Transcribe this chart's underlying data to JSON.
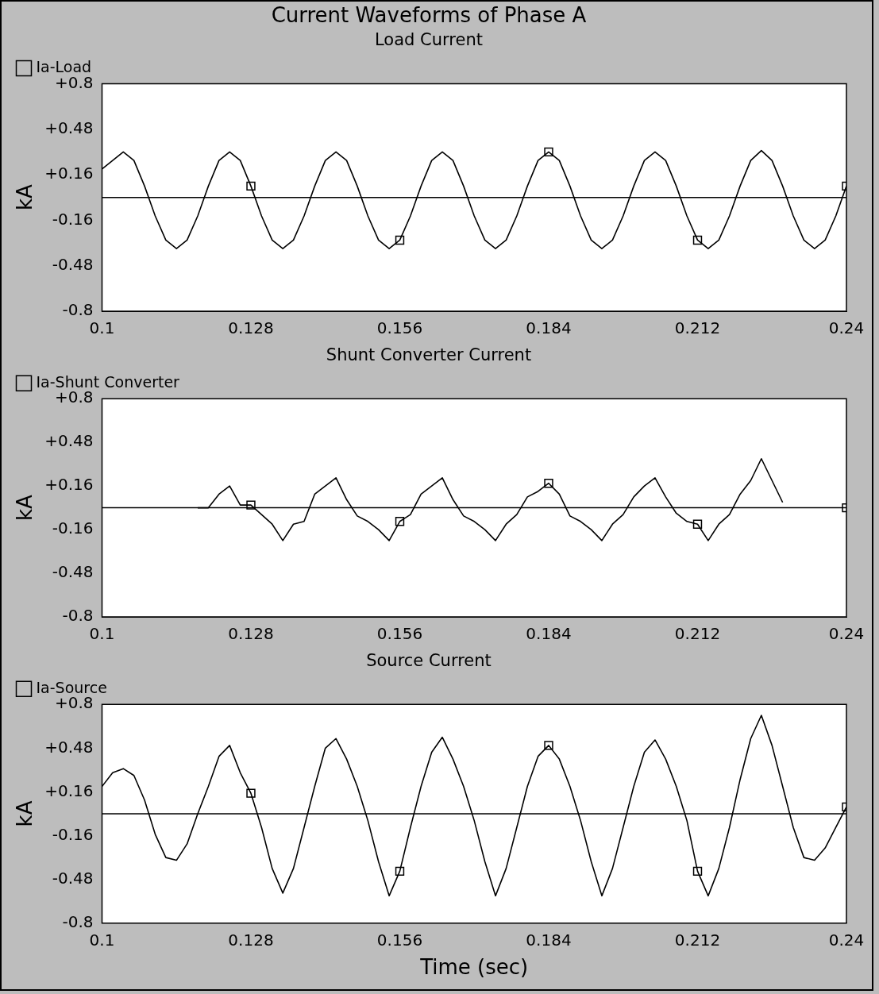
{
  "chart_data": [
    {
      "type": "line",
      "title": "Current Waveforms of Phase A",
      "subtitle": "Load Current",
      "ylabel": "kA",
      "x": [
        0.1,
        0.102,
        0.104,
        0.106,
        0.108,
        0.11,
        0.112,
        0.114,
        0.116,
        0.118,
        0.12,
        0.122,
        0.124,
        0.126,
        0.128,
        0.13,
        0.132,
        0.134,
        0.136,
        0.138,
        0.14,
        0.142,
        0.144,
        0.146,
        0.148,
        0.15,
        0.152,
        0.154,
        0.156,
        0.158,
        0.16,
        0.162,
        0.164,
        0.166,
        0.168,
        0.17,
        0.172,
        0.174,
        0.176,
        0.178,
        0.18,
        0.182,
        0.184,
        0.186,
        0.188,
        0.19,
        0.192,
        0.194,
        0.196,
        0.198,
        0.2,
        0.202,
        0.204,
        0.206,
        0.208,
        0.21,
        0.212,
        0.214,
        0.216,
        0.218,
        0.22,
        0.222,
        0.224,
        0.226,
        0.228,
        0.23,
        0.232,
        0.234,
        0.236,
        0.238,
        0.24
      ],
      "series": [
        {
          "name": "Ia-Load",
          "color": "#000000",
          "marker": "none",
          "values": [
            0.2,
            0.26,
            0.32,
            0.26,
            0.08,
            -0.13,
            -0.3,
            -0.36,
            -0.3,
            -0.13,
            0.08,
            0.26,
            0.32,
            0.26,
            0.08,
            -0.13,
            -0.3,
            -0.36,
            -0.3,
            -0.13,
            0.08,
            0.26,
            0.32,
            0.26,
            0.08,
            -0.13,
            -0.3,
            -0.36,
            -0.3,
            -0.13,
            0.08,
            0.26,
            0.32,
            0.26,
            0.08,
            -0.13,
            -0.3,
            -0.36,
            -0.3,
            -0.13,
            0.08,
            0.26,
            0.32,
            0.26,
            0.08,
            -0.13,
            -0.3,
            -0.36,
            -0.3,
            -0.13,
            0.08,
            0.26,
            0.32,
            0.26,
            0.08,
            -0.13,
            -0.3,
            -0.36,
            -0.3,
            -0.13,
            0.08,
            0.26,
            0.33,
            0.26,
            0.08,
            -0.13,
            -0.3,
            -0.36,
            -0.3,
            -0.13,
            0.08
          ]
        },
        {
          "type": "scatter",
          "color": "#000000",
          "x": [
            0.128,
            0.156,
            0.184,
            0.212,
            0.24
          ],
          "values": [
            0.08,
            -0.3,
            0.32,
            -0.3,
            0.08
          ]
        }
      ],
      "xlim": [
        0.1,
        0.24
      ],
      "xticks": [
        0.1,
        0.128,
        0.156,
        0.184,
        0.212,
        0.24
      ],
      "ylim": [
        -0.8,
        0.8
      ],
      "yticks": [
        {
          "value": 0.8,
          "label": "+0.8"
        },
        {
          "value": 0.48,
          "label": "+0.48"
        },
        {
          "value": 0.16,
          "label": "+0.16"
        },
        {
          "value": -0.16,
          "label": "-0.16"
        },
        {
          "value": -0.48,
          "label": "-0.48"
        },
        {
          "value": -0.8,
          "label": "-0.8"
        }
      ],
      "ref_lines": [
        {
          "axis": "y",
          "value": 0,
          "color": "#000000"
        }
      ],
      "legend": "top left",
      "marker": "square",
      "line_style": "solid"
    },
    {
      "type": "line",
      "title": "Shunt Converter Current",
      "ylabel": "kA",
      "series": [
        {
          "name": "Ia-Shunt Converter",
          "color": "#000000",
          "marker": "none",
          "x": [
            0.118,
            0.12,
            0.122,
            0.124,
            0.126,
            0.128,
            0.13,
            0.132,
            0.134,
            0.136,
            0.138,
            0.14,
            0.142,
            0.144,
            0.146,
            0.148,
            0.15,
            0.152,
            0.154,
            0.156,
            0.158,
            0.16,
            0.162,
            0.164,
            0.166,
            0.168,
            0.17,
            0.172,
            0.174,
            0.176,
            0.178,
            0.18,
            0.182,
            0.184,
            0.186,
            0.188,
            0.19,
            0.192,
            0.194,
            0.196,
            0.198,
            0.2,
            0.202,
            0.204,
            0.206,
            0.208,
            0.21,
            0.212,
            0.214,
            0.216,
            0.218,
            0.22,
            0.222,
            0.224,
            0.226,
            0.228
          ],
          "values": [
            0,
            0,
            0.1,
            0.16,
            0.02,
            0.02,
            -0.05,
            -0.12,
            -0.24,
            -0.12,
            -0.1,
            0.1,
            0.16,
            0.22,
            0.06,
            -0.06,
            -0.1,
            -0.16,
            -0.24,
            -0.1,
            -0.05,
            0.1,
            0.16,
            0.22,
            0.06,
            -0.06,
            -0.1,
            -0.16,
            -0.24,
            -0.12,
            -0.05,
            0.08,
            0.12,
            0.18,
            0.1,
            -0.06,
            -0.1,
            -0.16,
            -0.24,
            -0.12,
            -0.05,
            0.08,
            0.16,
            0.22,
            0.08,
            -0.04,
            -0.1,
            -0.12,
            -0.24,
            -0.12,
            -0.05,
            0.1,
            0.2,
            0.36,
            0.2,
            0.04
          ]
        },
        {
          "type": "scatter",
          "color": "#000000",
          "x": [
            0.128,
            0.156,
            0.184,
            0.212,
            0.24
          ],
          "values": [
            0.02,
            -0.1,
            0.18,
            -0.12,
            0
          ]
        }
      ],
      "xlim": [
        0.1,
        0.24
      ],
      "xticks": [
        0.1,
        0.128,
        0.156,
        0.184,
        0.212,
        0.24
      ],
      "ylim": [
        -0.8,
        0.8
      ],
      "yticks": [
        {
          "value": 0.8,
          "label": "+0.8"
        },
        {
          "value": 0.48,
          "label": "+0.48"
        },
        {
          "value": 0.16,
          "label": "+0.16"
        },
        {
          "value": -0.16,
          "label": "-0.16"
        },
        {
          "value": -0.48,
          "label": "-0.48"
        },
        {
          "value": -0.8,
          "label": "-0.8"
        }
      ],
      "ref_lines": [
        {
          "axis": "y",
          "value": 0,
          "color": "#000000"
        }
      ],
      "legend": "top left",
      "marker": "square",
      "line_style": "solid"
    },
    {
      "type": "line",
      "title": "Source Current",
      "ylabel": "kA",
      "xlabel": "Time (sec)",
      "x": [
        0.1,
        0.102,
        0.104,
        0.106,
        0.108,
        0.11,
        0.112,
        0.114,
        0.116,
        0.118,
        0.12,
        0.122,
        0.124,
        0.126,
        0.128,
        0.13,
        0.132,
        0.134,
        0.136,
        0.138,
        0.14,
        0.142,
        0.144,
        0.146,
        0.148,
        0.15,
        0.152,
        0.154,
        0.156,
        0.158,
        0.16,
        0.162,
        0.164,
        0.166,
        0.168,
        0.17,
        0.172,
        0.174,
        0.176,
        0.178,
        0.18,
        0.182,
        0.184,
        0.186,
        0.188,
        0.19,
        0.192,
        0.194,
        0.196,
        0.198,
        0.2,
        0.202,
        0.204,
        0.206,
        0.208,
        0.21,
        0.212,
        0.214,
        0.216,
        0.218,
        0.22,
        0.222,
        0.224,
        0.226,
        0.228,
        0.23,
        0.232,
        0.234,
        0.236,
        0.238,
        0.24
      ],
      "series": [
        {
          "name": "Ia-Source",
          "color": "#000000",
          "marker": "none",
          "values": [
            0.2,
            0.3,
            0.33,
            0.28,
            0.1,
            -0.15,
            -0.32,
            -0.34,
            -0.22,
            0,
            0.2,
            0.42,
            0.5,
            0.3,
            0.15,
            -0.1,
            -0.4,
            -0.58,
            -0.4,
            -0.1,
            0.2,
            0.48,
            0.55,
            0.4,
            0.2,
            -0.05,
            -0.35,
            -0.6,
            -0.42,
            -0.1,
            0.2,
            0.45,
            0.56,
            0.4,
            0.2,
            -0.05,
            -0.35,
            -0.6,
            -0.4,
            -0.1,
            0.2,
            0.42,
            0.5,
            0.4,
            0.2,
            -0.05,
            -0.35,
            -0.6,
            -0.4,
            -0.1,
            0.2,
            0.45,
            0.54,
            0.4,
            0.2,
            -0.05,
            -0.42,
            -0.6,
            -0.4,
            -0.1,
            0.25,
            0.55,
            0.72,
            0.5,
            0.2,
            -0.1,
            -0.32,
            -0.34,
            -0.25,
            -0.1,
            0.05
          ]
        },
        {
          "type": "scatter",
          "color": "#000000",
          "x": [
            0.128,
            0.156,
            0.184,
            0.212,
            0.24
          ],
          "values": [
            0.15,
            -0.42,
            0.5,
            -0.42,
            0.05
          ]
        }
      ],
      "xlim": [
        0.1,
        0.24
      ],
      "xticks": [
        0.1,
        0.128,
        0.156,
        0.184,
        0.212,
        0.24
      ],
      "ylim": [
        -0.8,
        0.8
      ],
      "yticks": [
        {
          "value": 0.8,
          "label": "+0.8"
        },
        {
          "value": 0.48,
          "label": "+0.48"
        },
        {
          "value": 0.16,
          "label": "+0.16"
        },
        {
          "value": -0.16,
          "label": "-0.16"
        },
        {
          "value": -0.48,
          "label": "-0.48"
        },
        {
          "value": -0.8,
          "label": "-0.8"
        }
      ],
      "ref_lines": [
        {
          "axis": "y",
          "value": 0,
          "color": "#000000"
        }
      ],
      "legend": "top left",
      "marker": "square",
      "line_style": "solid"
    }
  ]
}
